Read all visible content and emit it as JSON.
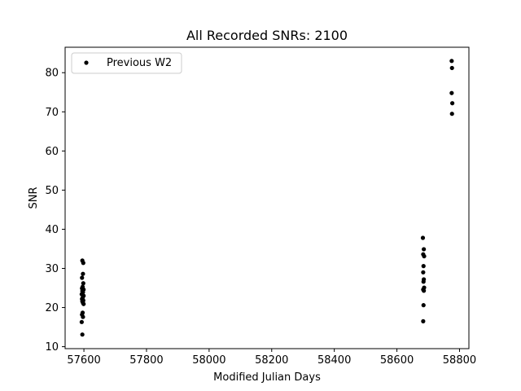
{
  "chart_data": {
    "type": "scatter",
    "title": "All Recorded SNRs: 2100",
    "xlabel": "Modified Julian Days",
    "ylabel": "SNR",
    "xlim": [
      57540,
      58830
    ],
    "ylim": [
      9.5,
      86.5
    ],
    "xticks": [
      57600,
      57800,
      58000,
      58200,
      58400,
      58600,
      58800
    ],
    "yticks": [
      10,
      20,
      30,
      40,
      50,
      60,
      70,
      80
    ],
    "grid": false,
    "legend_position": "top-left",
    "marker_color": "#000000",
    "series": [
      {
        "name": "Previous W2",
        "points": [
          [
            57595,
            32.0
          ],
          [
            57598,
            31.4
          ],
          [
            57597,
            28.6
          ],
          [
            57594,
            27.6
          ],
          [
            57598,
            26.2
          ],
          [
            57596,
            25.3
          ],
          [
            57594,
            24.9
          ],
          [
            57599,
            24.6
          ],
          [
            57595,
            24.2
          ],
          [
            57597,
            23.9
          ],
          [
            57593,
            23.4
          ],
          [
            57599,
            23.0
          ],
          [
            57596,
            22.5
          ],
          [
            57594,
            22.2
          ],
          [
            57598,
            21.8
          ],
          [
            57595,
            21.6
          ],
          [
            57597,
            21.2
          ],
          [
            57599,
            20.9
          ],
          [
            57596,
            18.7
          ],
          [
            57594,
            18.2
          ],
          [
            57597,
            17.6
          ],
          [
            57593,
            16.3
          ],
          [
            57595,
            13.1
          ],
          [
            58683,
            37.8
          ],
          [
            58686,
            34.9
          ],
          [
            58684,
            33.6
          ],
          [
            58687,
            33.1
          ],
          [
            58685,
            30.6
          ],
          [
            58684,
            29.0
          ],
          [
            58686,
            27.2
          ],
          [
            58685,
            26.6
          ],
          [
            58687,
            25.1
          ],
          [
            58684,
            24.6
          ],
          [
            58686,
            24.3
          ],
          [
            58685,
            20.6
          ],
          [
            58684,
            16.5
          ],
          [
            58775,
            83.0
          ],
          [
            58776,
            81.2
          ],
          [
            58775,
            74.8
          ],
          [
            58777,
            72.2
          ],
          [
            58776,
            69.5
          ]
        ]
      }
    ]
  }
}
